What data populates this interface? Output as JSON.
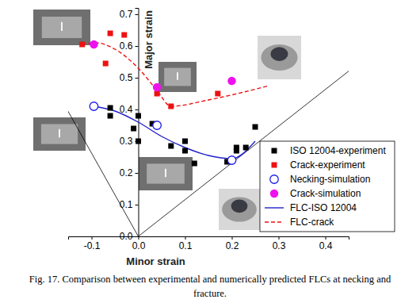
{
  "chart_data": {
    "type": "scatter",
    "title": [
      "Fig. 17. Comparison between experimental and numerically predicted FLCs at necking and",
      "fracture."
    ],
    "x_label": "Minor strain",
    "y_label": "Major strain",
    "xlim": [
      -0.15,
      0.45
    ],
    "ylim": [
      0,
      0.72
    ],
    "xticks": [
      -0.1,
      {
        "value": 0,
        "label": "0.0"
      },
      0.1,
      0.2,
      0.3,
      0.4
    ],
    "yticks": [
      {
        "value": 0,
        "label": "0.0"
      },
      0.1,
      0.2,
      0.3,
      0.4,
      0.5,
      0.6,
      0.7
    ],
    "grid": false,
    "legend": "lower right",
    "series": [
      {
        "name": "ISO 12004-experiment",
        "type": "scatter",
        "marker": "square",
        "color": "#000000",
        "x": [
          -0.06,
          -0.06,
          -0.01,
          0.0,
          0.0,
          0.03,
          0.07,
          0.1,
          0.1,
          0.12,
          0.19,
          0.21,
          0.21,
          0.23,
          0.25
        ],
        "values": [
          0.405,
          0.38,
          0.34,
          0.38,
          0.3,
          0.355,
          0.285,
          0.3,
          0.27,
          0.23,
          0.235,
          0.28,
          0.27,
          0.28,
          0.345
        ]
      },
      {
        "name": "Crack-experiment",
        "type": "scatter",
        "marker": "square",
        "color": "#ee1111",
        "x": [
          -0.12,
          -0.07,
          -0.06,
          -0.03,
          0.04,
          0.07,
          0.17
        ],
        "values": [
          0.605,
          0.545,
          0.64,
          0.635,
          0.45,
          0.41,
          0.45
        ]
      },
      {
        "name": "Necking-simulation",
        "type": "scatter",
        "marker": "circle-open",
        "color": "#1a1aee",
        "x": [
          -0.095,
          0.04,
          0.2
        ],
        "values": [
          0.41,
          0.35,
          0.24
        ]
      },
      {
        "name": "Crack-simulation",
        "type": "scatter",
        "marker": "circle",
        "color": "#ee11ee",
        "x": [
          -0.095,
          0.04,
          0.2
        ],
        "values": [
          0.605,
          0.47,
          0.49
        ]
      },
      {
        "name": "FLC-ISO 12004",
        "type": "line",
        "line_style": "solid",
        "color": "#2020cc",
        "x": [
          -0.095,
          -0.05,
          0.0,
          0.05,
          0.1,
          0.15,
          0.2,
          0.25
        ],
        "values": [
          0.41,
          0.395,
          0.36,
          0.315,
          0.28,
          0.255,
          0.245,
          0.3
        ]
      },
      {
        "name": "FLC-crack",
        "type": "line",
        "line_style": "dashed",
        "color": "#ee1111",
        "x": [
          -0.12,
          -0.09,
          -0.05,
          0.0,
          0.04,
          0.07,
          0.15,
          0.28
        ],
        "values": [
          0.605,
          0.61,
          0.59,
          0.53,
          0.46,
          0.41,
          0.43,
          0.475
        ]
      }
    ]
  }
}
